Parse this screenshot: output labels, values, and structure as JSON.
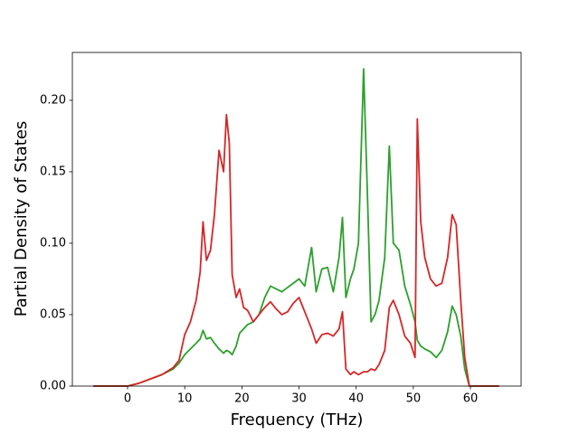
{
  "chart_data": {
    "type": "line",
    "xlabel": "Frequency (THz)",
    "ylabel": "Partial Density of States",
    "x": [
      -6,
      0,
      2,
      4,
      6,
      8,
      9,
      10,
      11,
      12,
      12.7,
      13.2,
      13.8,
      14.5,
      15.2,
      16,
      16.8,
      17.3,
      17.8,
      18.3,
      19,
      19.6,
      20.3,
      21,
      22,
      23,
      24,
      25,
      26,
      27,
      28,
      29,
      30,
      31,
      32.2,
      33,
      34,
      35,
      36,
      37,
      37.6,
      38.2,
      39,
      39.6,
      40.4,
      41.3,
      42,
      42.6,
      43.3,
      44,
      45,
      45.8,
      46.5,
      47.5,
      48.5,
      49.5,
      50.3,
      50.7,
      51.3,
      52,
      53,
      54,
      55,
      56,
      56.8,
      57.5,
      58.3,
      59,
      59.8,
      61,
      65
    ],
    "series": [
      {
        "color": "#2ca02c",
        "values": [
          0,
          0,
          0.002,
          0.005,
          0.008,
          0.012,
          0.016,
          0.022,
          0.026,
          0.03,
          0.033,
          0.039,
          0.033,
          0.034,
          0.03,
          0.026,
          0.023,
          0.025,
          0.024,
          0.022,
          0.028,
          0.037,
          0.04,
          0.043,
          0.045,
          0.05,
          0.062,
          0.07,
          0.068,
          0.066,
          0.069,
          0.072,
          0.075,
          0.07,
          0.097,
          0.066,
          0.082,
          0.083,
          0.066,
          0.09,
          0.118,
          0.062,
          0.075,
          0.082,
          0.1,
          0.222,
          0.13,
          0.045,
          0.05,
          0.06,
          0.09,
          0.168,
          0.1,
          0.095,
          0.07,
          0.057,
          0.045,
          0.032,
          0.028,
          0.026,
          0.024,
          0.02,
          0.025,
          0.038,
          0.056,
          0.05,
          0.035,
          0.012,
          0,
          0,
          0
        ]
      },
      {
        "color": "#d62728",
        "values": [
          0,
          0,
          0.002,
          0.005,
          0.008,
          0.013,
          0.018,
          0.036,
          0.045,
          0.06,
          0.08,
          0.115,
          0.088,
          0.095,
          0.12,
          0.165,
          0.15,
          0.19,
          0.17,
          0.078,
          0.062,
          0.068,
          0.055,
          0.053,
          0.045,
          0.05,
          0.055,
          0.059,
          0.054,
          0.05,
          0.052,
          0.058,
          0.062,
          0.052,
          0.04,
          0.03,
          0.036,
          0.037,
          0.035,
          0.04,
          0.052,
          0.012,
          0.008,
          0.01,
          0.008,
          0.01,
          0.01,
          0.012,
          0.011,
          0.015,
          0.025,
          0.055,
          0.06,
          0.05,
          0.035,
          0.03,
          0.02,
          0.187,
          0.115,
          0.09,
          0.075,
          0.07,
          0.072,
          0.09,
          0.12,
          0.113,
          0.06,
          0.02,
          0,
          0,
          0
        ]
      }
    ],
    "xlim": [
      -9.66,
      68.86
    ],
    "xticks": [
      0,
      10,
      20,
      30,
      40,
      50,
      60
    ],
    "ylim": [
      0,
      0.2335
    ],
    "yticks": [
      {
        "value": 0,
        "label": "0.00"
      },
      0.05,
      {
        "value": 0.1,
        "label": "0.10"
      },
      0.15,
      {
        "value": 0.2,
        "label": "0.20"
      }
    ]
  }
}
